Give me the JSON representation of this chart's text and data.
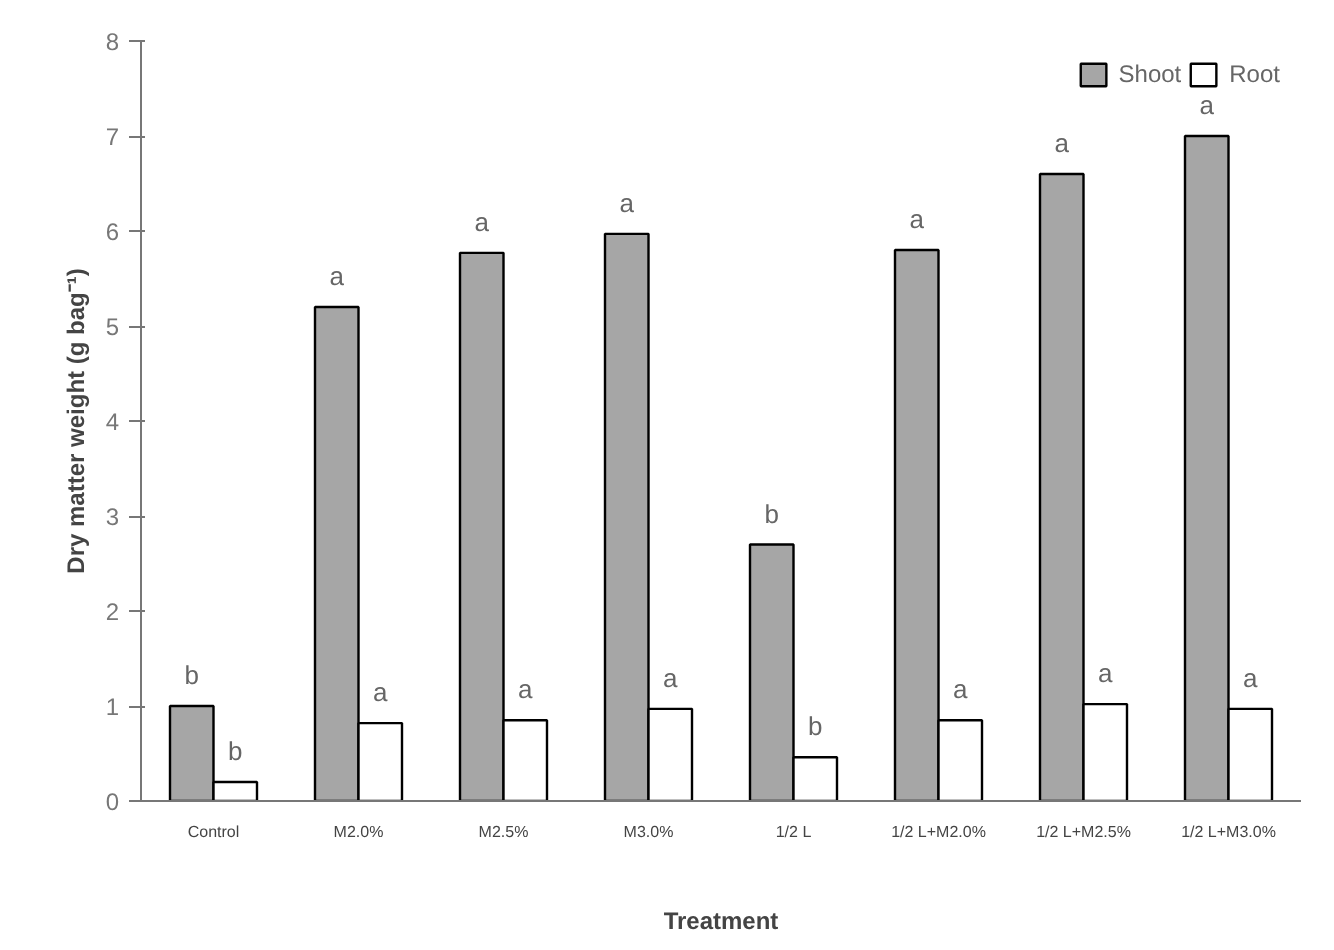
{
  "chart_data": {
    "type": "bar",
    "xlabel": "Treatment",
    "ylabel": "Dry matter weight (g bag⁻¹)",
    "categories": [
      "Control",
      "M2.0%",
      "M2.5%",
      "M3.0%",
      "1/2 L",
      "1/2 L+M2.0%",
      "1/2 L+M2.5%",
      "1/2 L+M3.0%"
    ],
    "series": [
      {
        "name": "Shoot",
        "color": "#a6a6a6",
        "values": [
          1.0,
          5.2,
          5.77,
          5.97,
          2.7,
          5.8,
          6.6,
          7.0
        ]
      },
      {
        "name": "Root",
        "color": "#ffffff",
        "values": [
          0.2,
          0.82,
          0.85,
          0.97,
          0.46,
          0.85,
          1.02,
          0.97
        ]
      }
    ],
    "ylim": [
      0,
      8
    ],
    "yticks": [
      0,
      1,
      2,
      3,
      4,
      5,
      6,
      7,
      8
    ],
    "grid": false,
    "legend": "top right",
    "annotations": [
      {
        "text": "b",
        "x": "Control",
        "y": 1.0
      },
      {
        "text": "b",
        "x": "Control",
        "y": 0.2
      },
      {
        "text": "a",
        "x": "M2.0%",
        "y": 5.2
      },
      {
        "text": "a",
        "x": "M2.0%",
        "y": 0.82
      },
      {
        "text": "a",
        "x": "M2.5%",
        "y": 5.77
      },
      {
        "text": "a",
        "x": "M2.5%",
        "y": 0.85
      },
      {
        "text": "a",
        "x": "M3.0%",
        "y": 5.97
      },
      {
        "text": "a",
        "x": "M3.0%",
        "y": 0.97
      },
      {
        "text": "b",
        "x": "1/2 L",
        "y": 2.7
      },
      {
        "text": "b",
        "x": "1/2 L",
        "y": 0.46
      },
      {
        "text": "a",
        "x": "1/2 L+M2.0%",
        "y": 5.8
      },
      {
        "text": "a",
        "x": "1/2 L+M2.0%",
        "y": 0.85
      },
      {
        "text": "a",
        "x": "1/2 L+M2.5%",
        "y": 6.6
      },
      {
        "text": "a",
        "x": "1/2 L+M2.5%",
        "y": 1.02
      },
      {
        "text": "a",
        "x": "1/2 L+M3.0%",
        "y": 7.0
      },
      {
        "text": "a",
        "x": "1/2 L+M3.0%",
        "y": 0.97
      }
    ]
  }
}
